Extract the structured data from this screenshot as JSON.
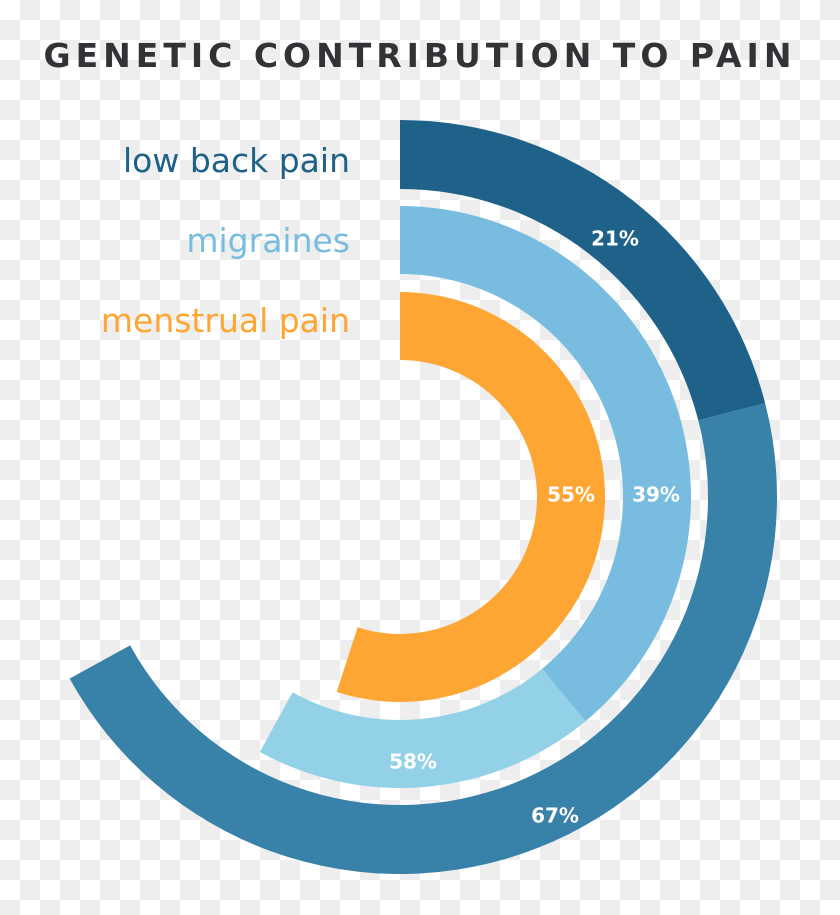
{
  "title": "GENETIC CONTRIBUTION TO PAIN",
  "legend": [
    {
      "label": "low back pain",
      "color": "#1e6189"
    },
    {
      "label": "migraines",
      "color": "#78bddf"
    },
    {
      "label": "menstrual pain",
      "color": "#fda633"
    }
  ],
  "chart_data": {
    "type": "radial-bar",
    "title": "GENETIC CONTRIBUTION TO PAIN",
    "series": [
      {
        "name": "low back pain",
        "segments": [
          {
            "label": "21%",
            "value": 21,
            "color": "#1e6189"
          },
          {
            "label": "67%",
            "value": 67,
            "color": "#3881a8",
            "note": "cumulative end"
          }
        ]
      },
      {
        "name": "migraines",
        "segments": [
          {
            "label": "39%",
            "value": 39,
            "color": "#78bddf"
          },
          {
            "label": "58%",
            "value": 58,
            "color": "#92d1e8",
            "note": "cumulative end"
          }
        ]
      },
      {
        "name": "menstrual pain",
        "segments": [
          {
            "label": "55%",
            "value": 55,
            "color": "#fda633"
          }
        ]
      }
    ],
    "scale": "percent of full circle, clockwise from 12 o'clock"
  }
}
